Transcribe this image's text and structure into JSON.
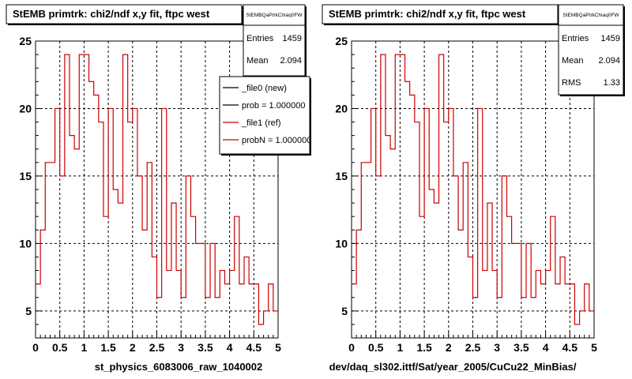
{
  "chart_data": [
    {
      "type": "line",
      "title": "StEMB primtrk: chi2/ndf x,y fit, ftpc west",
      "xlabel": "st_physics_6083006_raw_1040002",
      "ylabel": "",
      "xlim": [
        0,
        5
      ],
      "ylim": [
        3,
        25
      ],
      "xticks": [
        "0",
        "0.5",
        "1",
        "1.5",
        "2",
        "2.5",
        "3",
        "3.5",
        "4",
        "4.5",
        "5"
      ],
      "yticks": [
        "5",
        "10",
        "15",
        "20",
        "25"
      ],
      "grid": true,
      "bin_width": 0.1,
      "series": [
        {
          "name": "_file1 (ref)",
          "color": "#cc0000",
          "values": [
            7,
            11,
            16,
            16,
            20,
            15,
            24,
            18,
            17,
            24,
            24,
            22,
            21,
            19,
            12,
            20,
            14,
            13,
            24,
            19,
            20,
            15,
            11,
            16,
            9,
            6,
            20,
            8,
            13,
            8,
            6,
            15,
            12,
            10,
            10,
            6,
            10,
            6,
            8,
            7,
            8,
            12,
            7,
            9,
            7,
            7,
            4,
            5,
            7,
            5,
            5,
            14,
            14,
            14
          ]
        }
      ],
      "stats": {
        "box_title": "StEMBQaPtrkChiaq0FW",
        "entries_label": "Entries",
        "entries": "1459",
        "mean_label": "Mean",
        "mean": "2.094"
      },
      "legend": {
        "position": "top-right",
        "items": [
          "_file0 (new)",
          "prob = 1.000000",
          "_file1 (ref)",
          "probN = 1.000000"
        ]
      }
    },
    {
      "type": "line",
      "title": "StEMB primtrk: chi2/ndf x,y fit, ftpc west",
      "xlabel": "dev/daq_sl302.ittf/Sat/year_2005/CuCu22_MinBias/",
      "ylabel": "",
      "xlim": [
        0,
        5
      ],
      "ylim": [
        3,
        25
      ],
      "xticks": [
        "0",
        "0.5",
        "1",
        "1.5",
        "2",
        "2.5",
        "3",
        "3.5",
        "4",
        "4.5",
        "5"
      ],
      "yticks": [
        "5",
        "10",
        "15",
        "20",
        "25"
      ],
      "grid": true,
      "bin_width": 0.1,
      "series": [
        {
          "name": "",
          "color": "#cc0000",
          "values": [
            7,
            11,
            16,
            16,
            20,
            15,
            24,
            18,
            17,
            24,
            24,
            22,
            21,
            19,
            12,
            20,
            14,
            13,
            24,
            19,
            20,
            15,
            11,
            16,
            9,
            6,
            20,
            8,
            13,
            8,
            6,
            15,
            12,
            10,
            10,
            6,
            10,
            6,
            8,
            7,
            8,
            12,
            7,
            9,
            7,
            7,
            4,
            5,
            7,
            5,
            5,
            14,
            14,
            14
          ]
        }
      ],
      "stats": {
        "box_title": "StEMBQaPtrkChiaq0FW",
        "entries_label": "Entries",
        "entries": "1459",
        "mean_label": "Mean",
        "mean": "2.094",
        "rms_label": "RMS",
        "rms": "1.33"
      }
    }
  ]
}
